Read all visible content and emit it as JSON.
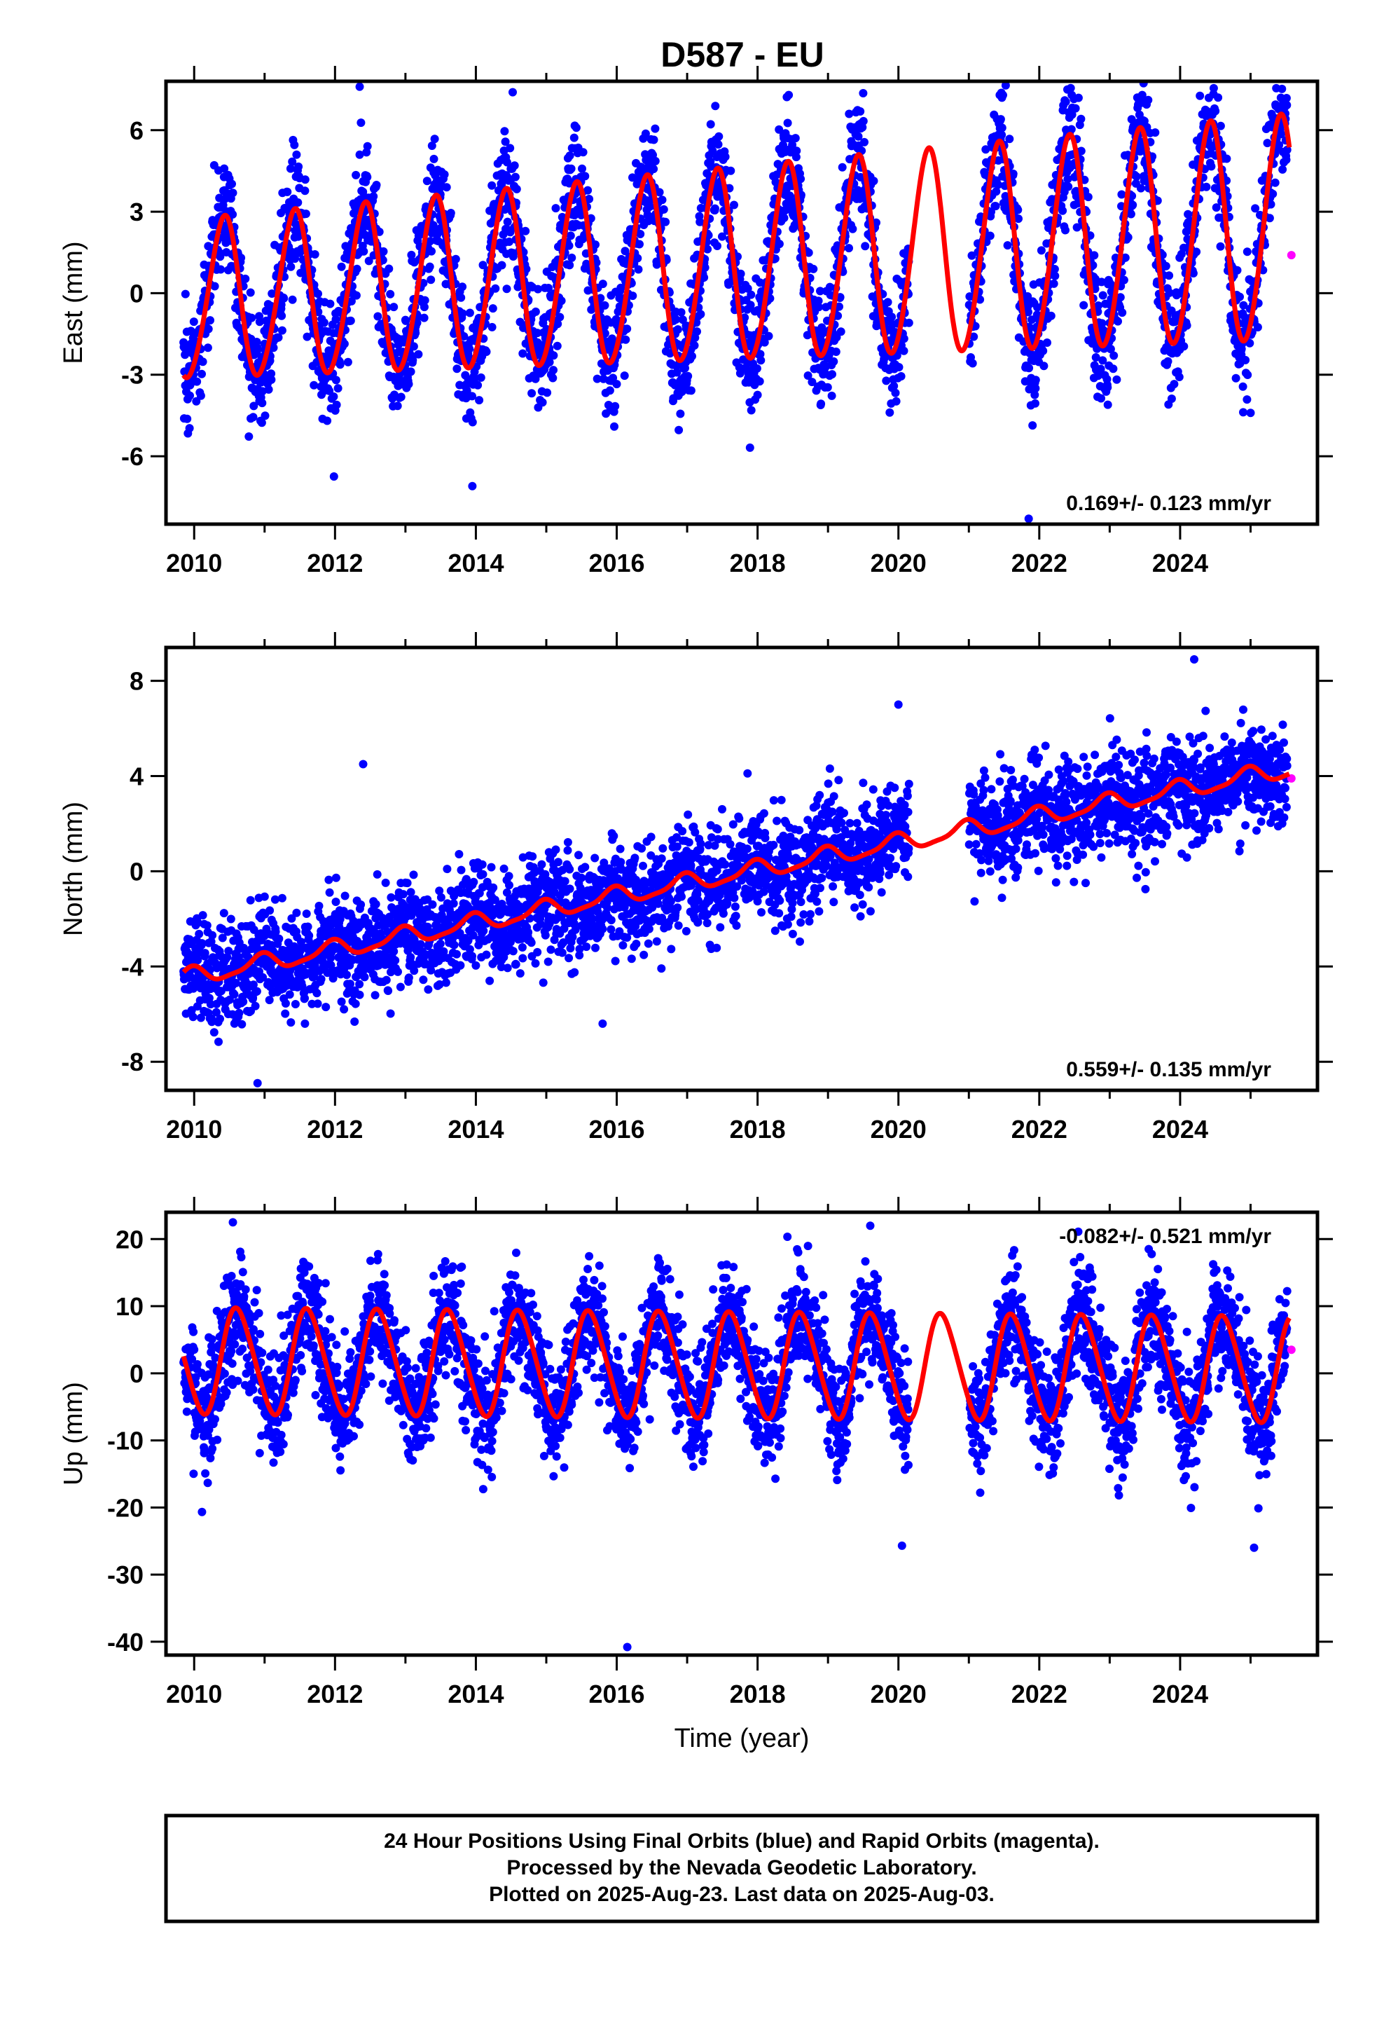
{
  "title": "D587 - EU",
  "xlabel": "Time (year)",
  "x_ticks": [
    "2010",
    "2012",
    "2014",
    "2016",
    "2018",
    "2020",
    "2022",
    "2024"
  ],
  "colors": {
    "final_orbits": "#0000ff",
    "rapid_orbits": "#ff00ff",
    "model_fit": "#ff0000",
    "frame": "#000000"
  },
  "footer": {
    "line1": "24 Hour Positions Using Final Orbits (blue) and Rapid Orbits (magenta).",
    "line2": "Processed by the Nevada Geodetic Laboratory.",
    "line3": "Plotted on 2025-Aug-23. Last data on 2025-Aug-03."
  },
  "chart_data": [
    {
      "type": "scatter",
      "component": "east",
      "ylabel": "East (mm)",
      "xlim": [
        2009.6,
        2025.95
      ],
      "ylim": [
        -8.5,
        7.8
      ],
      "y_ticks": [
        "6",
        "3",
        "0",
        "-3",
        "-6"
      ],
      "y_tick_values": [
        6,
        3,
        0,
        -3,
        -6
      ],
      "rate_label": "0.169+/- 0.123 mm/yr",
      "rate_position": "bottom-right",
      "series": [
        {
          "name": "Final Orbits",
          "color": "#0000ff",
          "data_span": [
            2009.85,
            2025.52
          ],
          "gap": [
            2020.15,
            2021.0
          ],
          "model": {
            "offset": -0.3,
            "trend_per_year": 0.169,
            "annual_amplitude": 2.9,
            "annual_amplitude_change_per_year": 0.08,
            "peak_year_fraction": 0.42,
            "semiannual_amplitude": 0.25,
            "noise_sd": 1.1
          },
          "outliers": [
            [
              2012.35,
              7.6
            ],
            [
              2013.95,
              -7.1
            ],
            [
              2021.85,
              -8.3
            ],
            [
              2019.3,
              6.6
            ]
          ]
        },
        {
          "name": "Rapid Orbits",
          "color": "#ff00ff",
          "points": [
            [
              2025.58,
              1.4
            ]
          ]
        }
      ],
      "fit": {
        "color": "#ff0000",
        "x_range": [
          2009.85,
          2025.55
        ],
        "offset": -0.3,
        "trend_per_year": 0.169,
        "annual_amplitude": 2.9,
        "annual_amplitude_change_per_year": 0.08,
        "peak_year_fraction": 0.42,
        "semiannual_amplitude": 0.25
      }
    },
    {
      "type": "scatter",
      "component": "north",
      "ylabel": "North (mm)",
      "xlim": [
        2009.6,
        2025.95
      ],
      "ylim": [
        -9.2,
        9.4
      ],
      "y_ticks": [
        "8",
        "4",
        "0",
        "-4",
        "-8"
      ],
      "y_tick_values": [
        8,
        4,
        0,
        -4,
        -8
      ],
      "rate_label": "0.559+/- 0.135 mm/yr",
      "rate_position": "bottom-right",
      "series": [
        {
          "name": "Final Orbits",
          "color": "#0000ff",
          "data_span": [
            2009.85,
            2025.52
          ],
          "gap": [
            2020.15,
            2021.0
          ],
          "model": {
            "offset": -4.4,
            "trend_per_year": 0.559,
            "annual_amplitude": 0.35,
            "annual_amplitude_change_per_year": 0.0,
            "peak_year_fraction": 0.95,
            "semiannual_amplitude": 0.1,
            "noise_sd": 1.05
          },
          "outliers": [
            [
              2012.4,
              4.5
            ],
            [
              2024.2,
              8.9
            ],
            [
              2020.0,
              7.0
            ],
            [
              2010.9,
              -8.9
            ],
            [
              2015.8,
              -6.4
            ]
          ]
        },
        {
          "name": "Rapid Orbits",
          "color": "#ff00ff",
          "points": [
            [
              2025.58,
              3.9
            ]
          ]
        }
      ],
      "fit": {
        "color": "#ff0000",
        "x_range": [
          2009.85,
          2025.55
        ],
        "offset": -4.4,
        "trend_per_year": 0.559,
        "annual_amplitude": 0.35,
        "annual_amplitude_change_per_year": 0.0,
        "peak_year_fraction": 0.95,
        "semiannual_amplitude": 0.1
      }
    },
    {
      "type": "scatter",
      "component": "up",
      "ylabel": "Up (mm)",
      "xlim": [
        2009.6,
        2025.95
      ],
      "ylim": [
        -42,
        24
      ],
      "y_ticks": [
        "20",
        "10",
        "0",
        "-10",
        "-20",
        "-30",
        "-40"
      ],
      "y_tick_values": [
        20,
        10,
        0,
        -10,
        -20,
        -30,
        -40
      ],
      "rate_label": "-0.082+/- 0.521 mm/yr",
      "rate_position": "top-right",
      "series": [
        {
          "name": "Final Orbits",
          "color": "#0000ff",
          "data_span": [
            2009.85,
            2025.52
          ],
          "gap": [
            2020.15,
            2021.0
          ],
          "model": {
            "offset": 1.8,
            "trend_per_year": -0.082,
            "annual_amplitude": 7.8,
            "annual_amplitude_change_per_year": 0.0,
            "peak_year_fraction": 0.62,
            "semiannual_amplitude": 0.8,
            "noise_sd": 4.2
          },
          "outliers": [
            [
              2016.15,
              -40.8
            ],
            [
              2020.05,
              -25.7
            ],
            [
              2010.55,
              22.5
            ],
            [
              2019.6,
              22.0
            ],
            [
              2025.05,
              -26.0
            ]
          ]
        },
        {
          "name": "Rapid Orbits",
          "color": "#ff00ff",
          "points": [
            [
              2025.58,
              3.5
            ]
          ]
        }
      ],
      "fit": {
        "color": "#ff0000",
        "x_range": [
          2009.85,
          2025.55
        ],
        "offset": 1.8,
        "trend_per_year": -0.082,
        "annual_amplitude": 7.8,
        "annual_amplitude_change_per_year": 0.0,
        "peak_year_fraction": 0.62,
        "semiannual_amplitude": 0.8
      }
    }
  ]
}
